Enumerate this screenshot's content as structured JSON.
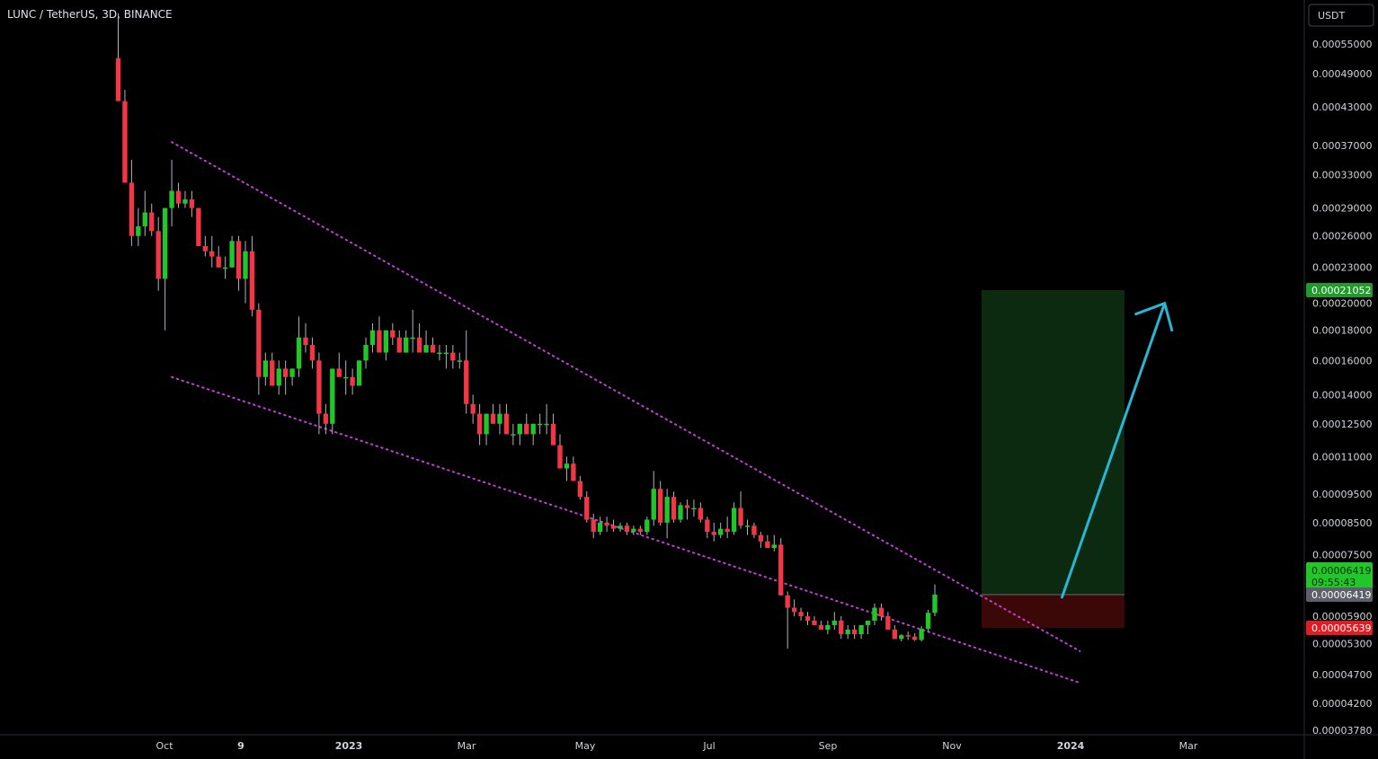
{
  "header": {
    "symbol_title": "LUNC / TetherUS, 3D, BINANCE"
  },
  "price_axis": {
    "currency_button": "USDT"
  },
  "colors": {
    "background": "#000000",
    "up_candle": "#21c629",
    "down_candle": "#f23645",
    "trendline": "#c23fd6",
    "arrow": "#27b7d3",
    "target_zone": "#0b2a10",
    "stop_zone": "#3b0707",
    "axis_line": "#2a2e39",
    "text": "#d1d4dc"
  },
  "chart_data": {
    "type": "candlestick",
    "title": "LUNC / TetherUS, 3D, BINANCE",
    "y_scale": "log",
    "ylim": [
      3.72e-05,
      6.2e-05
    ],
    "y_ticks": [
      "0.00055000",
      "0.00049000",
      "0.00043000",
      "0.00037000",
      "0.00033000",
      "0.00029000",
      "0.00026000",
      "0.00023000",
      "0.00020000",
      "0.00018000",
      "0.00016000",
      "0.00014000",
      "0.00012500",
      "0.00011000",
      "0.00009500",
      "0.00008500",
      "0.00007500",
      "0.00005900",
      "0.00005300",
      "0.00004700",
      "0.00004200",
      "0.00003780"
    ],
    "x_ticks": [
      {
        "label": "Oct",
        "bold": false
      },
      {
        "label": "9",
        "bold": true
      },
      {
        "label": "2023",
        "bold": true
      },
      {
        "label": "Mar",
        "bold": false
      },
      {
        "label": "May",
        "bold": false
      },
      {
        "label": "Jul",
        "bold": false
      },
      {
        "label": "Sep",
        "bold": false
      },
      {
        "label": "Nov",
        "bold": false
      },
      {
        "label": "2024",
        "bold": true
      },
      {
        "label": "Mar",
        "bold": false
      }
    ],
    "candles": [
      [
        0.00052,
        0.00062,
        0.00044,
        0.00044
      ],
      [
        0.00044,
        0.00046,
        0.00032,
        0.00032
      ],
      [
        0.00032,
        0.00035,
        0.00025,
        0.00026
      ],
      [
        0.00026,
        0.00029,
        0.00025,
        0.00027
      ],
      [
        0.00027,
        0.00031,
        0.00026,
        0.000285
      ],
      [
        0.000285,
        0.000295,
        0.00026,
        0.000265
      ],
      [
        0.000265,
        0.00028,
        0.00021,
        0.00022
      ],
      [
        0.00022,
        0.00029,
        0.00018,
        0.00029
      ],
      [
        0.00029,
        0.00035,
        0.00027,
        0.00031
      ],
      [
        0.00031,
        0.00032,
        0.00029,
        0.000295
      ],
      [
        0.000295,
        0.00031,
        0.00029,
        0.0003
      ],
      [
        0.0003,
        0.00031,
        0.00028,
        0.00029
      ],
      [
        0.00029,
        0.00029,
        0.00025,
        0.00025
      ],
      [
        0.00025,
        0.00026,
        0.00024,
        0.000245
      ],
      [
        0.000245,
        0.00026,
        0.00023,
        0.00024
      ],
      [
        0.00024,
        0.00025,
        0.00023,
        0.00023
      ],
      [
        0.00023,
        0.00024,
        0.00022,
        0.00023
      ],
      [
        0.00023,
        0.00026,
        0.00023,
        0.000255
      ],
      [
        0.000255,
        0.00026,
        0.00021,
        0.00022
      ],
      [
        0.00022,
        0.000255,
        0.0002,
        0.000245
      ],
      [
        0.000245,
        0.00026,
        0.00019,
        0.000195
      ],
      [
        0.000195,
        0.0002,
        0.00014,
        0.00015
      ],
      [
        0.00015,
        0.000165,
        0.000145,
        0.00016
      ],
      [
        0.00016,
        0.000165,
        0.000145,
        0.000145
      ],
      [
        0.000145,
        0.00016,
        0.00014,
        0.000155
      ],
      [
        0.000155,
        0.00016,
        0.00014,
        0.00015
      ],
      [
        0.00015,
        0.000155,
        0.000145,
        0.000155
      ],
      [
        0.000155,
        0.00019,
        0.00015,
        0.000175
      ],
      [
        0.000175,
        0.000185,
        0.000165,
        0.00017
      ],
      [
        0.00017,
        0.000175,
        0.000155,
        0.00016
      ],
      [
        0.00016,
        0.000165,
        0.00012,
        0.00013
      ],
      [
        0.00013,
        0.000135,
        0.00012,
        0.000125
      ],
      [
        0.000125,
        0.00015,
        0.00012,
        0.000155
      ],
      [
        0.000155,
        0.000165,
        0.00015,
        0.00015
      ],
      [
        0.00015,
        0.00016,
        0.00014,
        0.00015
      ],
      [
        0.00015,
        0.000155,
        0.00014,
        0.000145
      ],
      [
        0.000145,
        0.00016,
        0.000145,
        0.00016
      ],
      [
        0.00016,
        0.000175,
        0.000155,
        0.00017
      ],
      [
        0.00017,
        0.000185,
        0.000165,
        0.00018
      ],
      [
        0.00018,
        0.00019,
        0.000165,
        0.000165
      ],
      [
        0.000165,
        0.00018,
        0.00016,
        0.00018
      ],
      [
        0.00018,
        0.000185,
        0.00017,
        0.000175
      ],
      [
        0.000175,
        0.00018,
        0.000165,
        0.000165
      ],
      [
        0.000165,
        0.00018,
        0.000165,
        0.000175
      ],
      [
        0.000175,
        0.000195,
        0.000165,
        0.000175
      ],
      [
        0.000175,
        0.000185,
        0.000165,
        0.000165
      ],
      [
        0.000165,
        0.00018,
        0.000165,
        0.00017
      ],
      [
        0.00017,
        0.000175,
        0.000165,
        0.000165
      ],
      [
        0.000165,
        0.00017,
        0.00016,
        0.000165
      ],
      [
        0.000165,
        0.00017,
        0.000155,
        0.000165
      ],
      [
        0.000165,
        0.00017,
        0.000155,
        0.00016
      ],
      [
        0.00016,
        0.000165,
        0.000155,
        0.00016
      ],
      [
        0.00016,
        0.00018,
        0.00013,
        0.000135
      ],
      [
        0.000135,
        0.00014,
        0.000125,
        0.00013
      ],
      [
        0.00013,
        0.000135,
        0.000115,
        0.00012
      ],
      [
        0.00012,
        0.00013,
        0.000115,
        0.00013
      ],
      [
        0.00013,
        0.000135,
        0.000125,
        0.000125
      ],
      [
        0.000125,
        0.000135,
        0.00012,
        0.00013
      ],
      [
        0.00013,
        0.000135,
        0.00012,
        0.00012
      ],
      [
        0.00012,
        0.000125,
        0.000115,
        0.00012
      ],
      [
        0.00012,
        0.000125,
        0.000115,
        0.000125
      ],
      [
        0.000125,
        0.00013,
        0.00012,
        0.00012
      ],
      [
        0.00012,
        0.000125,
        0.000115,
        0.000125
      ],
      [
        0.000125,
        0.00013,
        0.00012,
        0.000125
      ],
      [
        0.000125,
        0.000135,
        0.00012,
        0.000125
      ],
      [
        0.000125,
        0.00013,
        0.000115,
        0.000115
      ],
      [
        0.000115,
        0.00012,
        0.000105,
        0.000105
      ],
      [
        0.000105,
        0.00011,
        0.0001,
        0.000107
      ],
      [
        0.000107,
        0.00011,
        0.0001,
        0.0001
      ],
      [
        0.0001,
        0.000102,
        9.3e-05,
        9.4e-05
      ],
      [
        9.4e-05,
        9.6e-05,
        8.5e-05,
        8.6e-05
      ],
      [
        8.6e-05,
        8.8e-05,
        8e-05,
        8.2e-05
      ],
      [
        8.2e-05,
        8.7e-05,
        8.1e-05,
        8.5e-05
      ],
      [
        8.5e-05,
        8.7e-05,
        8.2e-05,
        8.4e-05
      ],
      [
        8.4e-05,
        8.6e-05,
        8.2e-05,
        8.3e-05
      ],
      [
        8.3e-05,
        8.5e-05,
        8.2e-05,
        8.4e-05
      ],
      [
        8.4e-05,
        8.5e-05,
        8.1e-05,
        8.2e-05
      ],
      [
        8.2e-05,
        8.4e-05,
        8.1e-05,
        8.3e-05
      ],
      [
        8.3e-05,
        8.4e-05,
        8.1e-05,
        8.2e-05
      ],
      [
        8.2e-05,
        8.7e-05,
        8.1e-05,
        8.6e-05
      ],
      [
        8.6e-05,
        0.000104,
        8.4e-05,
        9.7e-05
      ],
      [
        9.7e-05,
        0.0001,
        8.4e-05,
        8.5e-05
      ],
      [
        8.5e-05,
        9.7e-05,
        8e-05,
        9.4e-05
      ],
      [
        9.4e-05,
        9.6e-05,
        8.5e-05,
        8.6e-05
      ],
      [
        8.6e-05,
        9.2e-05,
        8.5e-05,
        9.1e-05
      ],
      [
        9.1e-05,
        9.3e-05,
        8.6e-05,
        9e-05
      ],
      [
        9e-05,
        9.3e-05,
        8.7e-05,
        9e-05
      ],
      [
        9e-05,
        9.2e-05,
        8.5e-05,
        8.6e-05
      ],
      [
        8.6e-05,
        8.7e-05,
        8e-05,
        8.2e-05
      ],
      [
        8.2e-05,
        8.5e-05,
        7.9e-05,
        8.1e-05
      ],
      [
        8.1e-05,
        8.5e-05,
        8e-05,
        8.3e-05
      ],
      [
        8.3e-05,
        8.7e-05,
        8e-05,
        8.2e-05
      ],
      [
        8.2e-05,
        9.2e-05,
        8.1e-05,
        9e-05
      ],
      [
        9e-05,
        9.6e-05,
        8.3e-05,
        8.4e-05
      ],
      [
        8.4e-05,
        8.6e-05,
        8.1e-05,
        8.4e-05
      ],
      [
        8.4e-05,
        8.5e-05,
        8e-05,
        8.1e-05
      ],
      [
        8.1e-05,
        8.2e-05,
        7.7e-05,
        7.9e-05
      ],
      [
        7.9e-05,
        8.1e-05,
        7.7e-05,
        7.7e-05
      ],
      [
        7.7e-05,
        8.1e-05,
        7.6e-05,
        7.8e-05
      ],
      [
        7.8e-05,
        8e-05,
        6.4e-05,
        6.4e-05
      ],
      [
        6.4e-05,
        6.5e-05,
        5.2e-05,
        6.1e-05
      ],
      [
        6.1e-05,
        6.3e-05,
        5.9e-05,
        6e-05
      ],
      [
        6e-05,
        6.1e-05,
        5.8e-05,
        5.9e-05
      ],
      [
        5.9e-05,
        6e-05,
        5.7e-05,
        5.8e-05
      ],
      [
        5.8e-05,
        5.9e-05,
        5.7e-05,
        5.7e-05
      ],
      [
        5.7e-05,
        5.8e-05,
        5.6e-05,
        5.6e-05
      ],
      [
        5.6e-05,
        5.8e-05,
        5.5e-05,
        5.7e-05
      ],
      [
        5.7e-05,
        6e-05,
        5.6e-05,
        5.8e-05
      ],
      [
        5.8e-05,
        5.9e-05,
        5.4e-05,
        5.5e-05
      ],
      [
        5.5e-05,
        5.7e-05,
        5.4e-05,
        5.6e-05
      ],
      [
        5.6e-05,
        5.7e-05,
        5.4e-05,
        5.5e-05
      ],
      [
        5.5e-05,
        5.7e-05,
        5.4e-05,
        5.7e-05
      ],
      [
        5.7e-05,
        5.8e-05,
        5.5e-05,
        5.8e-05
      ],
      [
        5.8e-05,
        6.2e-05,
        5.7e-05,
        6.1e-05
      ],
      [
        6.1e-05,
        6.2e-05,
        5.8e-05,
        5.9e-05
      ],
      [
        5.9e-05,
        6e-05,
        5.6e-05,
        5.6e-05
      ],
      [
        5.6e-05,
        5.7e-05,
        5.4e-05,
        5.4e-05
      ],
      [
        5.4e-05,
        5.5e-05,
        5.35e-05,
        5.48e-05
      ],
      [
        5.48e-05,
        5.56e-05,
        5.38e-05,
        5.45e-05
      ],
      [
        5.45e-05,
        5.52e-05,
        5.36e-05,
        5.38e-05
      ],
      [
        5.38e-05,
        5.68e-05,
        5.35e-05,
        5.62e-05
      ],
      [
        5.62e-05,
        6.05e-05,
        5.56e-05,
        5.98e-05
      ],
      [
        5.98e-05,
        6.68e-05,
        5.9e-05,
        6.42e-05
      ]
    ],
    "upper_trendline": {
      "from": [
        "2022-10-03",
        0.000375
      ],
      "to": [
        "2023-11-14",
        5.15e-05
      ]
    },
    "lower_trendline": {
      "from": [
        "2022-10-03",
        0.00015
      ],
      "to": [
        "2023-11-14",
        4.55e-05
      ]
    },
    "position": {
      "target_price": 0.00021052,
      "entry_price": 6.419e-05,
      "stop_price": 5.639e-05
    },
    "arrow": {
      "from": [
        "2023-11-06",
        6.355e-05
      ],
      "to": [
        "2023-12-22",
        0.0002
      ]
    },
    "price_labels": {
      "target": "0.00021052",
      "current_price": "0.00006419",
      "countdown": "09:55:43",
      "entry": "0.00006419",
      "stop": "0.00005639"
    }
  }
}
